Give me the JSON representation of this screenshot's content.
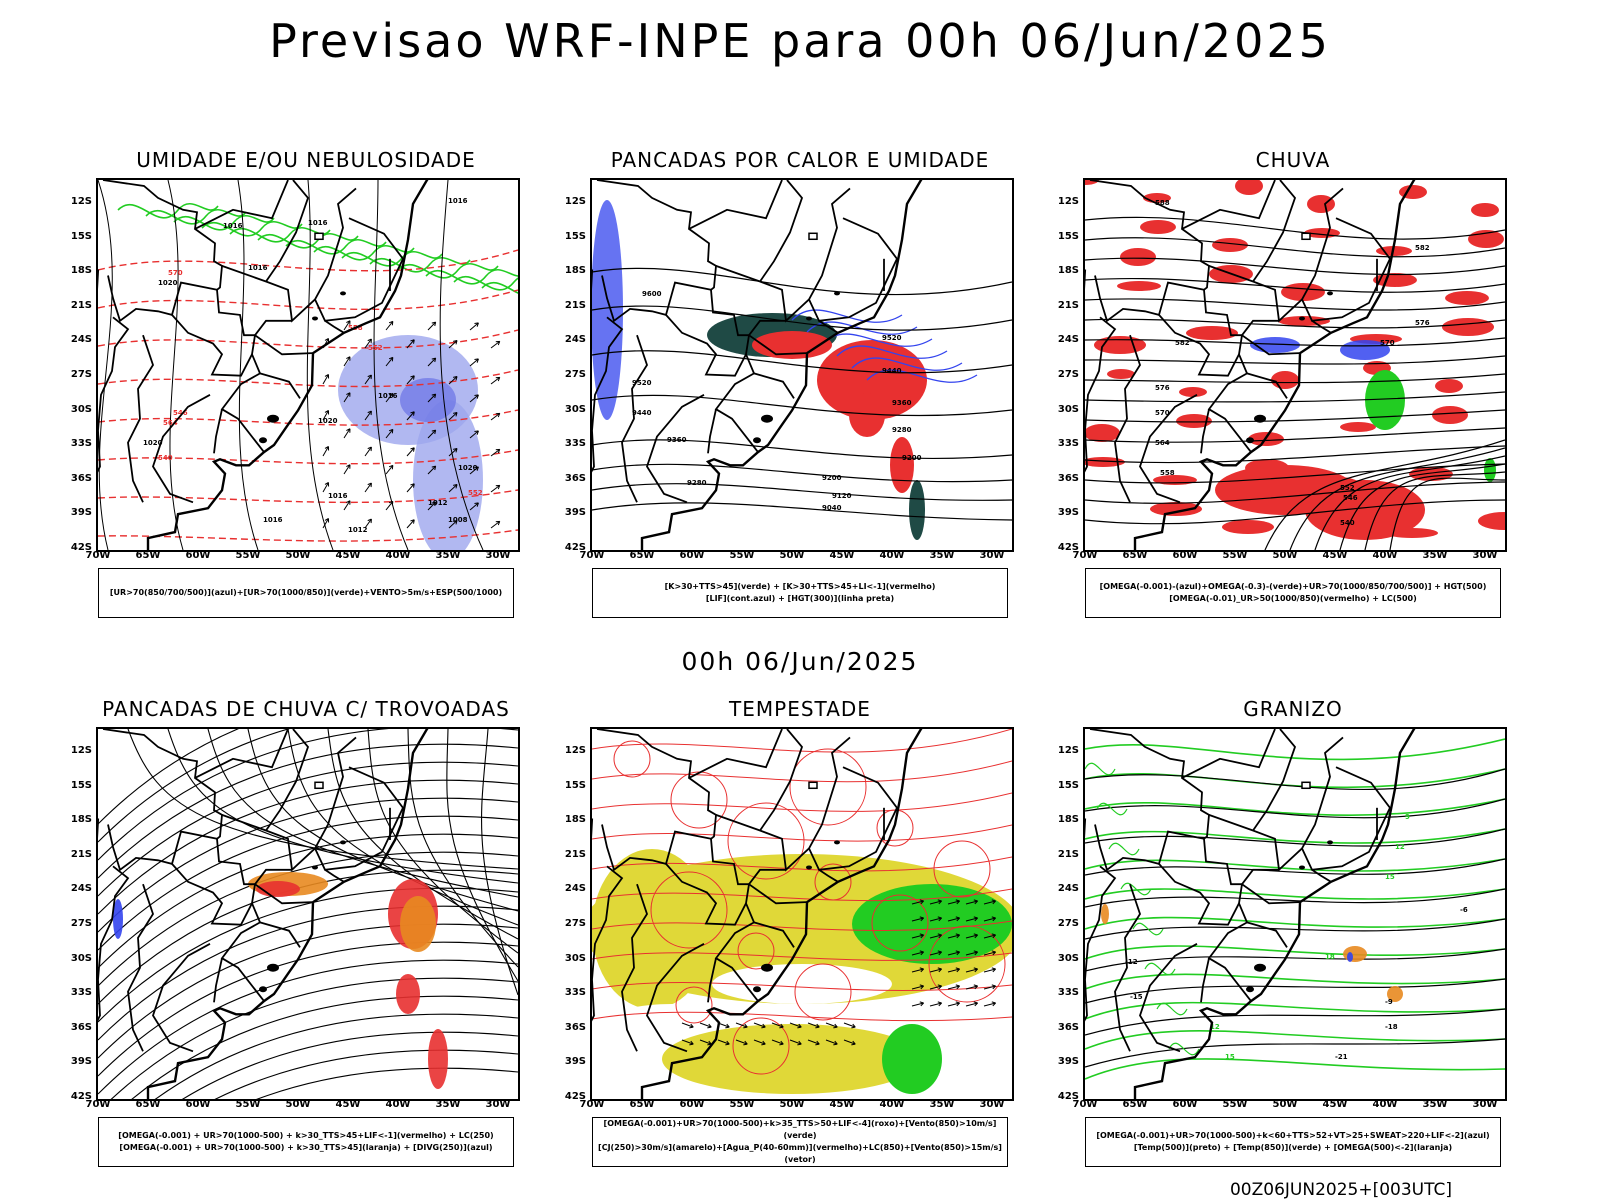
{
  "header": {
    "title": "Previsao WRF-INPE  para 00h 06/Jun/2025"
  },
  "mid_title": "00h 06/Jun/2025",
  "footer": "00Z06JUN2025+[003UTC]",
  "axes": {
    "lat_labels": [
      "12S",
      "15S",
      "18S",
      "21S",
      "24S",
      "27S",
      "30S",
      "33S",
      "36S",
      "39S",
      "42S"
    ],
    "lon_labels": [
      "70W",
      "65W",
      "60W",
      "55W",
      "50W",
      "45W",
      "40W",
      "35W",
      "30W"
    ]
  },
  "panels": [
    {
      "title": "UMIDADE E/OU NEBULOSIDADE",
      "legend": [
        "[UR>70(850/700/500)](azul)+[UR>70(1000/850)](verde)+VENTO>5m/s+ESP(500/1000)"
      ],
      "contour_labels": [
        "1016",
        "1016",
        "1016",
        "1016",
        "1020",
        "1020",
        "1016",
        "1016",
        "1020",
        "1012",
        "1020",
        "1016",
        "1012",
        "1008",
        "570",
        "564",
        "558",
        "552",
        "546",
        "540",
        "552"
      ]
    },
    {
      "title": "PANCADAS POR CALOR E UMIDADE",
      "legend": [
        "[K>30+TTS>45](verde) + [K>30+TTS>45+LI<-1](vermelho)",
        "[LIF](cont.azul) + [HGT(300)](linha preta)"
      ],
      "contour_labels": [
        "9600",
        "9520",
        "9440",
        "9360",
        "9280",
        "9200",
        "9120",
        "9040",
        "9520",
        "9440",
        "9360",
        "9280",
        "9200"
      ]
    },
    {
      "title": "CHUVA",
      "legend": [
        "[OMEGA(-0.001)-(azul)+OMEGA(-0.3)-(verde)+UR>70(1000/850/700/500)] + HGT(500)",
        "[OMEGA(-0.01)_UR>50(1000/850)(vermelho) + LC(500)"
      ],
      "contour_labels": [
        "588",
        "582",
        "576",
        "570",
        "564",
        "558",
        "552",
        "546",
        "540",
        "582",
        "576",
        "570"
      ]
    },
    {
      "title": "PANCADAS DE CHUVA C/ TROVOADAS",
      "legend": [
        "[OMEGA(-0.001) + UR>70(1000-500) + k>30_TTS>45+LIF<-1](vermelho) + LC(250)",
        "[OMEGA(-0.001) + UR>70(1000-500) + k>30_TTS>45](laranja) + [DIVG(250)](azul)"
      ],
      "contour_labels": []
    },
    {
      "title": "TEMPESTADE",
      "legend": [
        "[OMEGA(-0.001)+UR>70(1000-500)+k>35_TTS>50+LIF<-4](roxo)+[Vento(850)>10m/s](verde)",
        "[CJ(250)>30m/s](amarelo)+[Agua_P(40-60mm)](vermelho)+LC(850)+[Vento(850)>15m/s](vetor)"
      ],
      "contour_labels": []
    },
    {
      "title": "GRANIZO",
      "legend": [
        "[OMEGA(-0.001)+UR>70(1000-500)+k<60+TTS>52+VT>25+SWEAT>220+LIF<-2](azul)",
        "[Temp(500)](preto) + [Temp(850)](verde) + [OMEGA(500)<-2](laranja)"
      ],
      "contour_labels": [
        "-6",
        "-9",
        "-12",
        "-15",
        "-18",
        "-21",
        "12",
        "15",
        "18",
        "15",
        "12",
        "9"
      ]
    }
  ],
  "colors": {
    "red": "#e83030",
    "green": "#22cc22",
    "blue": "#3344ee",
    "lightblue": "#9ea6ee",
    "darkgreen": "#1f4a45",
    "yellow": "#e0d838",
    "orange": "#e88a20",
    "black": "#000000"
  }
}
